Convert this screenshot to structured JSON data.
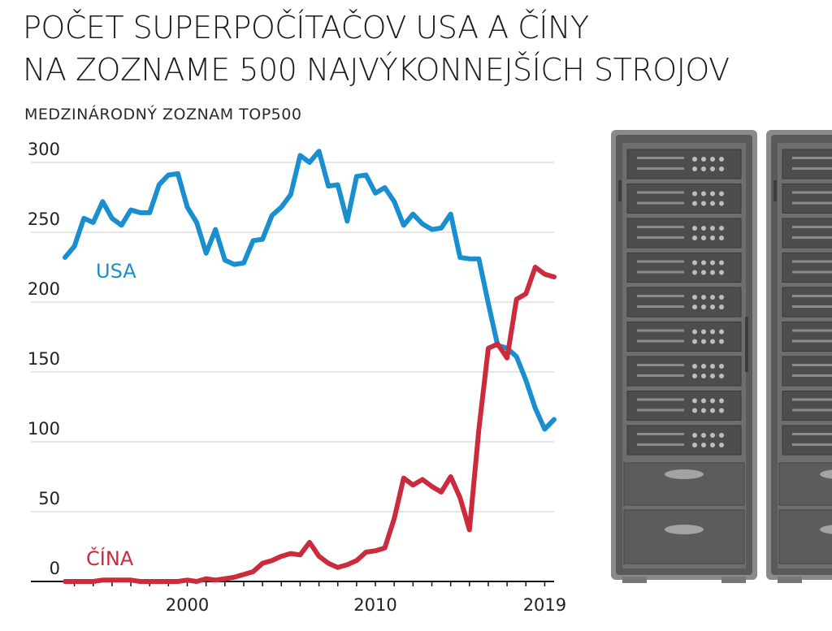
{
  "title": {
    "line1": "POČET SUPERPOČÍTAČOV USA A ČÍNY",
    "line2": "NA ZOZNAME 500 NAJVÝKONNEJŠÍCH STROJOV"
  },
  "subtitle": "MEDZINÁRODNÝ ZOZNAM TOP500",
  "colors": {
    "usa": "#1a8fd0",
    "china": "#cc2a3d",
    "grid": "#e6e6e6",
    "axis": "#111111"
  },
  "chart_data": {
    "type": "line",
    "title": "POČET SUPERPOČÍTAČOV USA A ČÍNY NA ZOZNAME 500 NAJVÝKONNEJŠÍCH STROJOV",
    "subtitle": "MEDZINÁRODNÝ ZOZNAM TOP500",
    "xlim": [
      1993.5,
      2019.5
    ],
    "ylim": [
      0,
      300
    ],
    "x_ticks": [
      2000,
      2010,
      2019
    ],
    "y_ticks": [
      0,
      50,
      100,
      150,
      200,
      250,
      300
    ],
    "grid": "horizontal",
    "x": [
      1993.5,
      1994,
      1994.5,
      1995,
      1995.5,
      1996,
      1996.5,
      1997,
      1997.5,
      1998,
      1998.5,
      1999,
      1999.5,
      2000,
      2000.5,
      2001,
      2001.5,
      2002,
      2002.5,
      2003,
      2003.5,
      2004,
      2004.5,
      2005,
      2005.5,
      2006,
      2006.5,
      2007,
      2007.5,
      2008,
      2008.5,
      2009,
      2009.5,
      2010,
      2010.5,
      2011,
      2011.5,
      2012,
      2012.5,
      2013,
      2013.5,
      2014,
      2014.5,
      2015,
      2015.5,
      2016,
      2016.5,
      2017,
      2017.5,
      2018,
      2018.5,
      2019,
      2019.5
    ],
    "series": [
      {
        "name": "USA",
        "color": "#1a8fd0",
        "values": [
          232,
          240,
          260,
          257,
          272,
          260,
          255,
          266,
          264,
          264,
          284,
          291,
          292,
          268,
          257,
          235,
          252,
          230,
          227,
          228,
          244,
          245,
          262,
          268,
          277,
          305,
          300,
          308,
          283,
          284,
          258,
          290,
          291,
          278,
          282,
          272,
          255,
          263,
          256,
          252,
          253,
          263,
          232,
          231,
          231,
          199,
          169,
          167,
          161,
          144,
          124,
          109,
          116
        ]
      },
      {
        "name": "ČÍNA",
        "color": "#cc2a3d",
        "values": [
          0,
          0,
          0,
          0,
          1,
          1,
          1,
          1,
          0,
          0,
          0,
          0,
          0,
          1,
          0,
          2,
          1,
          2,
          3,
          5,
          7,
          13,
          15,
          18,
          20,
          19,
          28,
          18,
          13,
          10,
          12,
          15,
          21,
          22,
          24,
          45,
          74,
          69,
          73,
          68,
          64,
          75,
          60,
          37,
          109,
          167,
          170,
          160,
          202,
          206,
          225,
          220,
          218
        ]
      }
    ]
  }
}
